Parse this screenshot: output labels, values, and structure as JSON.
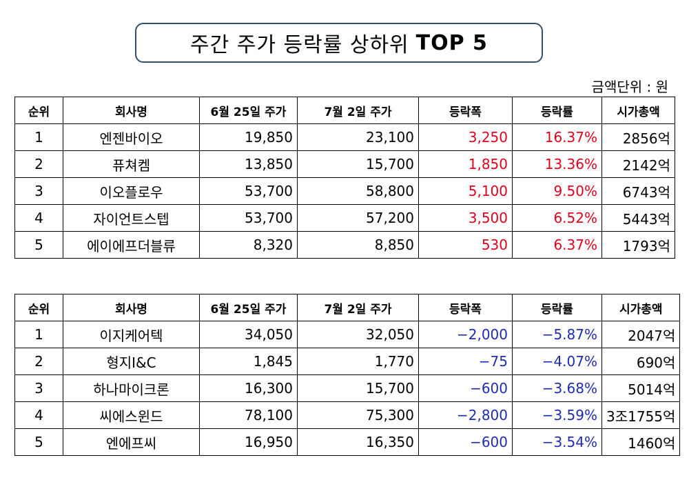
{
  "title": {
    "main": "주간 주가 등락률 상하위",
    "bold": "TOP 5"
  },
  "unit_label": "금액단위 : 원",
  "headers": [
    "순위",
    "회사명",
    "6월 25일 주가",
    "7월 2일 주가",
    "등락폭",
    "등락률",
    "시가총액"
  ],
  "colors": {
    "up": "#e0001b",
    "down": "#1f2bb0"
  },
  "gainers": [
    {
      "rank": "1",
      "name": "엔젠바이오",
      "jun25": "19,850",
      "jul2": "23,100",
      "change": "3,250",
      "rate": "16.37%",
      "cap": "2856억"
    },
    {
      "rank": "2",
      "name": "퓨쳐켐",
      "jun25": "13,850",
      "jul2": "15,700",
      "change": "1,850",
      "rate": "13.36%",
      "cap": "2142억"
    },
    {
      "rank": "3",
      "name": "이오플로우",
      "jun25": "53,700",
      "jul2": "58,800",
      "change": "5,100",
      "rate": "9.50%",
      "cap": "6743억"
    },
    {
      "rank": "4",
      "name": "자이언트스텝",
      "jun25": "53,700",
      "jul2": "57,200",
      "change": "3,500",
      "rate": "6.52%",
      "cap": "5443억"
    },
    {
      "rank": "5",
      "name": "에이에프더블류",
      "jun25": "8,320",
      "jul2": "8,850",
      "change": "530",
      "rate": "6.37%",
      "cap": "1793억"
    }
  ],
  "losers": [
    {
      "rank": "1",
      "name": "이지케어텍",
      "jun25": "34,050",
      "jul2": "32,050",
      "change": "−2,000",
      "rate": "−5.87%",
      "cap": "2047억"
    },
    {
      "rank": "2",
      "name": "형지I&C",
      "jun25": "1,845",
      "jul2": "1,770",
      "change": "−75",
      "rate": "−4.07%",
      "cap": "690억"
    },
    {
      "rank": "3",
      "name": "하나마이크론",
      "jun25": "16,300",
      "jul2": "15,700",
      "change": "−600",
      "rate": "−3.68%",
      "cap": "5014억"
    },
    {
      "rank": "4",
      "name": "씨에스윈드",
      "jun25": "78,100",
      "jul2": "75,300",
      "change": "−2,800",
      "rate": "−3.59%",
      "cap": "3조1755억"
    },
    {
      "rank": "5",
      "name": "엔에프씨",
      "jun25": "16,950",
      "jul2": "16,350",
      "change": "−600",
      "rate": "−3.54%",
      "cap": "1460억"
    }
  ]
}
